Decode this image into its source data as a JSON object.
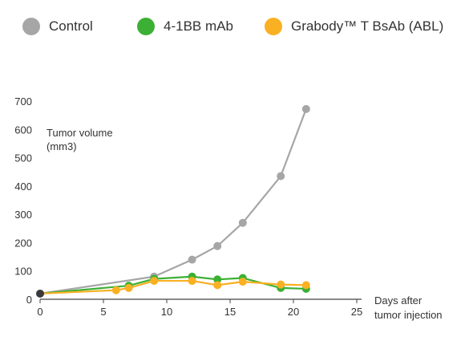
{
  "chart_data": {
    "type": "line",
    "title": "",
    "xlabel": "Days after tumor injection",
    "ylabel": "Tumor volume (mm3)",
    "xlim": [
      0,
      25
    ],
    "ylim": [
      0,
      700
    ],
    "x_ticks": [
      0,
      5,
      10,
      15,
      20,
      25
    ],
    "y_ticks": [
      0,
      100,
      200,
      300,
      400,
      500,
      600,
      700
    ],
    "grid": false,
    "legend_position": "top",
    "series": [
      {
        "name": "Control",
        "color": "#a6a6a6",
        "x": [
          0,
          9,
          12,
          14,
          16,
          19,
          21
        ],
        "y": [
          20,
          80,
          140,
          188,
          270,
          435,
          672
        ]
      },
      {
        "name": "4-1BB mAb",
        "color": "#3cb034",
        "x": [
          0,
          7,
          9,
          12,
          14,
          16,
          19,
          21
        ],
        "y": [
          20,
          48,
          72,
          80,
          70,
          75,
          40,
          37
        ]
      },
      {
        "name": "Grabody™ T BsAb (ABL)",
        "color": "#f9b023",
        "x": [
          0,
          6,
          7,
          9,
          12,
          14,
          16,
          19,
          21
        ],
        "y": [
          20,
          32,
          40,
          65,
          65,
          50,
          62,
          52,
          50
        ]
      }
    ],
    "origin_point": {
      "x": 0,
      "y": 20,
      "color": "#3a3a3a"
    }
  }
}
